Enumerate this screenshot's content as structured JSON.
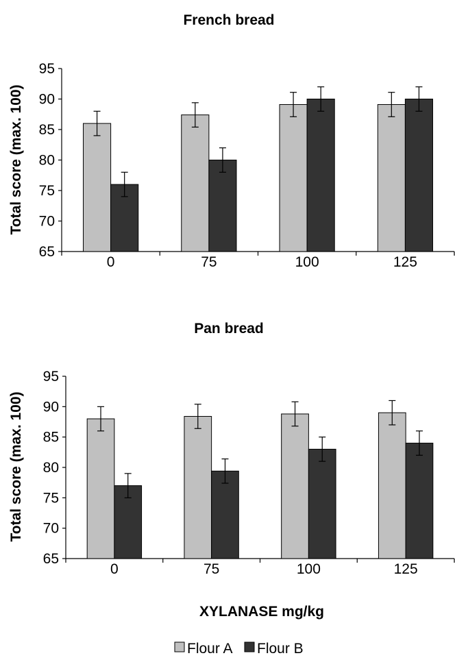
{
  "chart_data": [
    {
      "type": "bar",
      "title": "French bread",
      "ylabel": "Total score (max. 100)",
      "xlabel": "",
      "categories": [
        "0",
        "75",
        "100",
        "125"
      ],
      "ylim": [
        65,
        95
      ],
      "yticks": [
        65,
        70,
        75,
        80,
        85,
        90,
        95
      ],
      "error_bar": 2,
      "series": [
        {
          "name": "Flour A",
          "color": "#c0c0c0",
          "values": [
            86,
            87.4,
            89.1,
            89.1
          ]
        },
        {
          "name": "Flour B",
          "color": "#333333",
          "values": [
            76,
            80,
            90,
            90
          ]
        }
      ]
    },
    {
      "type": "bar",
      "title": "Pan bread",
      "ylabel": "Total score (max. 100)",
      "xlabel": "XYLANASE mg/kg",
      "categories": [
        "0",
        "75",
        "100",
        "125"
      ],
      "ylim": [
        65,
        95
      ],
      "yticks": [
        65,
        70,
        75,
        80,
        85,
        90,
        95
      ],
      "error_bar": 2,
      "series": [
        {
          "name": "Flour A",
          "color": "#c0c0c0",
          "values": [
            88,
            88.4,
            88.8,
            89
          ]
        },
        {
          "name": "Flour B",
          "color": "#333333",
          "values": [
            77,
            79.4,
            83,
            84
          ]
        }
      ]
    }
  ],
  "legend": {
    "items": [
      {
        "label": "Flour A",
        "color": "#c0c0c0"
      },
      {
        "label": "Flour B",
        "color": "#333333"
      }
    ]
  }
}
